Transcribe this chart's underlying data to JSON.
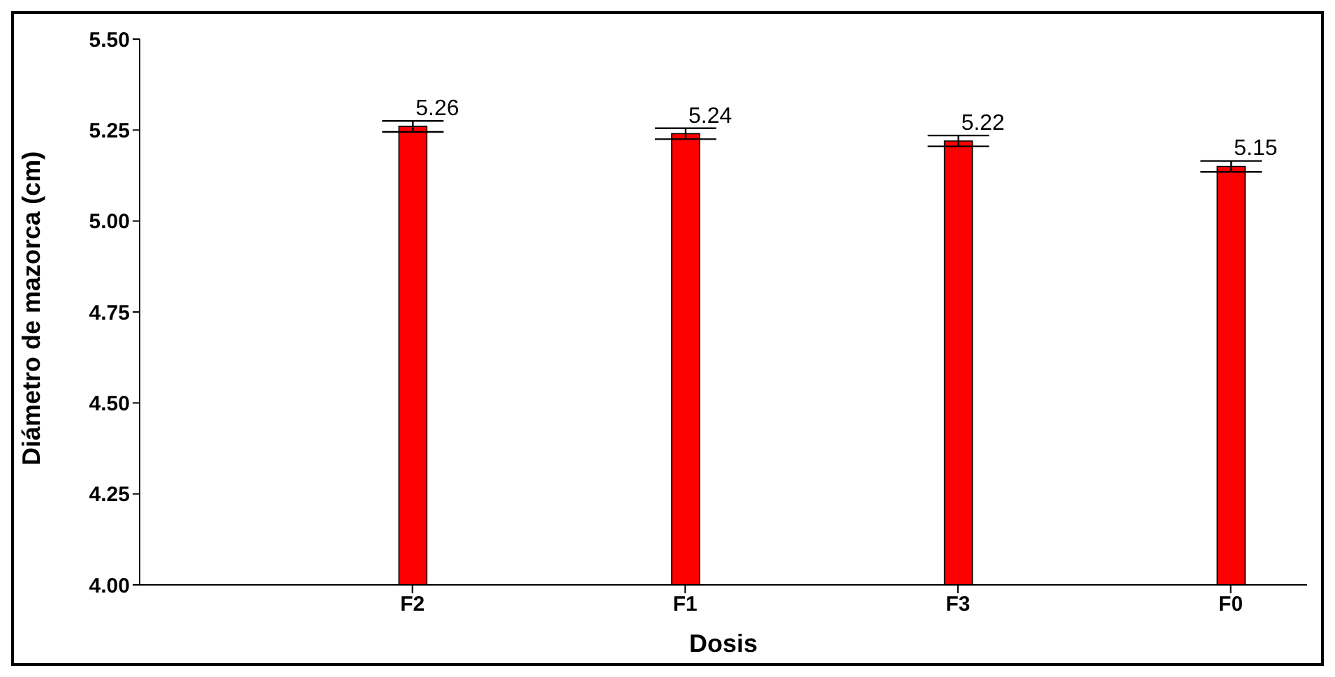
{
  "chart_data": {
    "type": "bar",
    "xlabel": "Dosis",
    "ylabel": "Diámetro de mazorca (cm)",
    "categories": [
      "F2",
      "F1",
      "F3",
      "F0"
    ],
    "values": [
      5.26,
      5.24,
      5.22,
      5.15
    ],
    "color": "#ff0000",
    "errors": [
      0.015,
      0.015,
      0.015,
      0.015
    ],
    "ylim": [
      4.0,
      5.5
    ],
    "yticks": [
      {
        "value": 4.0,
        "label": "4.00"
      },
      {
        "value": 4.25,
        "label": "4.25"
      },
      {
        "value": 4.5,
        "label": "4.50"
      },
      {
        "value": 4.75,
        "label": "4.75"
      },
      {
        "value": 5.0,
        "label": "5.00"
      },
      {
        "value": 5.25,
        "label": "5.25"
      },
      {
        "value": 5.5,
        "label": "5.50"
      }
    ],
    "data_labels": true,
    "grid": false,
    "legend": false
  }
}
